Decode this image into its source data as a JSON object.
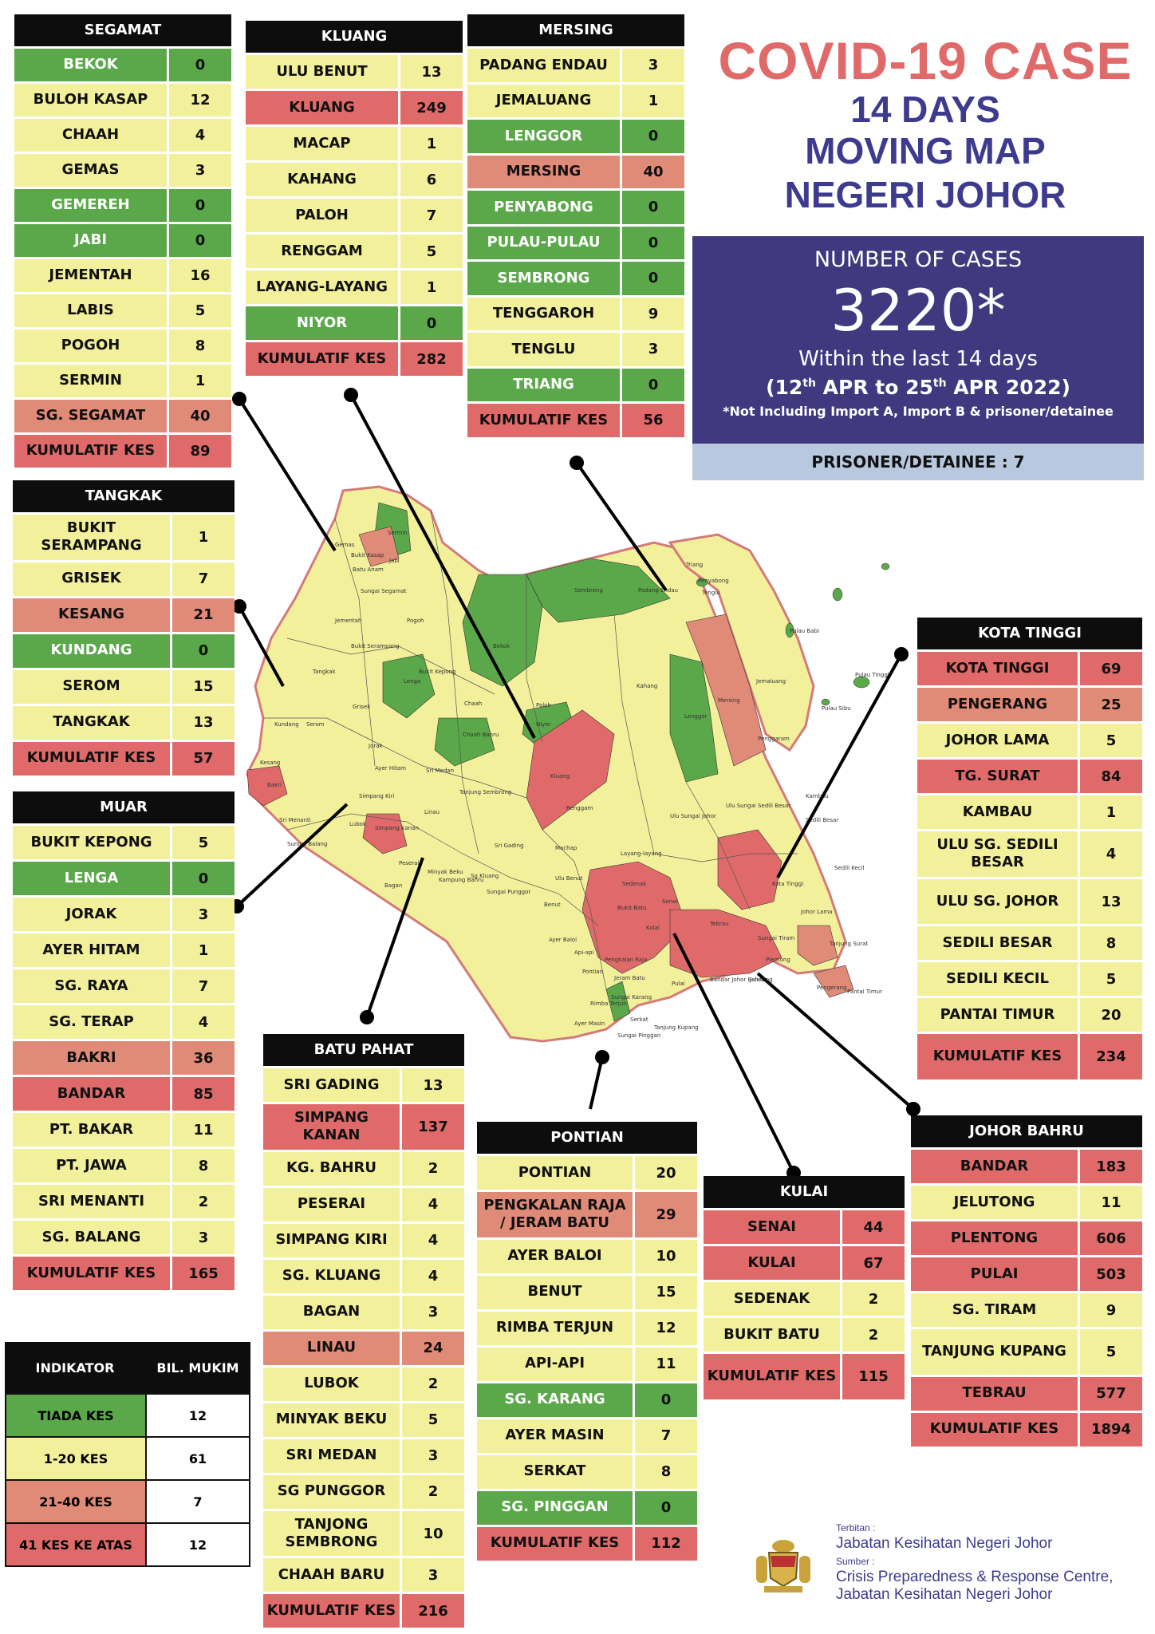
{
  "title": {
    "line1": "COVID-19 CASE",
    "line2": "14 DAYS",
    "line3": "MOVING MAP",
    "line4": "NEGERI JOHOR"
  },
  "summary": {
    "heading": "NUMBER OF CASES",
    "total": "3220*",
    "within": "Within the last 14 days",
    "period_a": "(12",
    "sup1": "th",
    "period_b": " APR to 25",
    "sup2": "th",
    "period_c": " APR 2022)",
    "note": "*Not Including Import A, Import B & prisoner/detainee",
    "prisoner": "PRISONER/DETAINEE : 7"
  },
  "colors": {
    "green": "#5aa84a",
    "yellow": "#f3f09c",
    "orange": "#e08a78",
    "red": "#e06a6a",
    "title_red": "#e06a6a",
    "title_blue": "#3d3b8e",
    "box_blue": "#41397f"
  },
  "districts": {
    "segamat": {
      "name": "SEGAMAT",
      "rows": [
        {
          "n": "BEKOK",
          "v": "0",
          "c": "g"
        },
        {
          "n": "BULOH KASAP",
          "v": "12",
          "c": "y"
        },
        {
          "n": "CHAAH",
          "v": "4",
          "c": "y"
        },
        {
          "n": "GEMAS",
          "v": "3",
          "c": "y"
        },
        {
          "n": "GEMEREH",
          "v": "0",
          "c": "g"
        },
        {
          "n": "JABI",
          "v": "0",
          "c": "g"
        },
        {
          "n": "JEMENTAH",
          "v": "16",
          "c": "y"
        },
        {
          "n": "LABIS",
          "v": "5",
          "c": "y"
        },
        {
          "n": "POGOH",
          "v": "8",
          "c": "y"
        },
        {
          "n": "SERMIN",
          "v": "1",
          "c": "y"
        },
        {
          "n": "SG. SEGAMAT",
          "v": "40",
          "c": "o"
        },
        {
          "n": "KUMULATIF KES",
          "v": "89",
          "c": "r"
        }
      ]
    },
    "kluang": {
      "name": "KLUANG",
      "rows": [
        {
          "n": "ULU BENUT",
          "v": "13",
          "c": "y"
        },
        {
          "n": "KLUANG",
          "v": "249",
          "c": "r"
        },
        {
          "n": "MACAP",
          "v": "1",
          "c": "y"
        },
        {
          "n": "KAHANG",
          "v": "6",
          "c": "y"
        },
        {
          "n": "PALOH",
          "v": "7",
          "c": "y"
        },
        {
          "n": "RENGGAM",
          "v": "5",
          "c": "y"
        },
        {
          "n": "LAYANG-LAYANG",
          "v": "1",
          "c": "y"
        },
        {
          "n": "NIYOR",
          "v": "0",
          "c": "g"
        },
        {
          "n": "KUMULATIF KES",
          "v": "282",
          "c": "r"
        }
      ]
    },
    "mersing": {
      "name": "MERSING",
      "rows": [
        {
          "n": "PADANG ENDAU",
          "v": "3",
          "c": "y"
        },
        {
          "n": "JEMALUANG",
          "v": "1",
          "c": "y"
        },
        {
          "n": "LENGGOR",
          "v": "0",
          "c": "g"
        },
        {
          "n": "MERSING",
          "v": "40",
          "c": "o"
        },
        {
          "n": "PENYABONG",
          "v": "0",
          "c": "g"
        },
        {
          "n": "PULAU-PULAU",
          "v": "0",
          "c": "g"
        },
        {
          "n": "SEMBRONG",
          "v": "0",
          "c": "g"
        },
        {
          "n": "TENGGAROH",
          "v": "9",
          "c": "y"
        },
        {
          "n": "TENGLU",
          "v": "3",
          "c": "y"
        },
        {
          "n": "TRIANG",
          "v": "0",
          "c": "g"
        },
        {
          "n": "KUMULATIF KES",
          "v": "56",
          "c": "r"
        }
      ]
    },
    "tangkak": {
      "name": "TANGKAK",
      "rows": [
        {
          "n": "BUKIT SERAMPANG",
          "v": "1",
          "c": "y",
          "tall": true
        },
        {
          "n": "GRISEK",
          "v": "7",
          "c": "y"
        },
        {
          "n": "KESANG",
          "v": "21",
          "c": "o"
        },
        {
          "n": "KUNDANG",
          "v": "0",
          "c": "g"
        },
        {
          "n": "SEROM",
          "v": "15",
          "c": "y"
        },
        {
          "n": "TANGKAK",
          "v": "13",
          "c": "y"
        },
        {
          "n": "KUMULATIF KES",
          "v": "57",
          "c": "r"
        }
      ]
    },
    "muar": {
      "name": "MUAR",
      "rows": [
        {
          "n": "BUKIT KEPONG",
          "v": "5",
          "c": "y"
        },
        {
          "n": "LENGA",
          "v": "0",
          "c": "g"
        },
        {
          "n": "JORAK",
          "v": "3",
          "c": "y"
        },
        {
          "n": "AYER HITAM",
          "v": "1",
          "c": "y"
        },
        {
          "n": "SG. RAYA",
          "v": "7",
          "c": "y"
        },
        {
          "n": "SG. TERAP",
          "v": "4",
          "c": "y"
        },
        {
          "n": "BAKRI",
          "v": "36",
          "c": "o"
        },
        {
          "n": "BANDAR",
          "v": "85",
          "c": "r"
        },
        {
          "n": "PT. BAKAR",
          "v": "11",
          "c": "y"
        },
        {
          "n": "PT. JAWA",
          "v": "8",
          "c": "y"
        },
        {
          "n": "SRI MENANTI",
          "v": "2",
          "c": "y"
        },
        {
          "n": "SG. BALANG",
          "v": "3",
          "c": "y"
        },
        {
          "n": "KUMULATIF KES",
          "v": "165",
          "c": "r"
        }
      ]
    },
    "batu_pahat": {
      "name": "BATU PAHAT",
      "rows": [
        {
          "n": "SRI GADING",
          "v": "13",
          "c": "y"
        },
        {
          "n": "SIMPANG KANAN",
          "v": "137",
          "c": "r",
          "tall": true
        },
        {
          "n": "KG. BAHRU",
          "v": "2",
          "c": "y"
        },
        {
          "n": "PESERAI",
          "v": "4",
          "c": "y"
        },
        {
          "n": "SIMPANG KIRI",
          "v": "4",
          "c": "y"
        },
        {
          "n": "SG. KLUANG",
          "v": "4",
          "c": "y"
        },
        {
          "n": "BAGAN",
          "v": "3",
          "c": "y"
        },
        {
          "n": "LINAU",
          "v": "24",
          "c": "o"
        },
        {
          "n": "LUBOK",
          "v": "2",
          "c": "y"
        },
        {
          "n": "MINYAK BEKU",
          "v": "5",
          "c": "y"
        },
        {
          "n": "SRI MEDAN",
          "v": "3",
          "c": "y"
        },
        {
          "n": "SG PUNGGOR",
          "v": "2",
          "c": "y"
        },
        {
          "n": "TANJONG SEMBRONG",
          "v": "10",
          "c": "y",
          "tall": true
        },
        {
          "n": "CHAAH BARU",
          "v": "3",
          "c": "y"
        },
        {
          "n": "KUMULATIF KES",
          "v": "216",
          "c": "r"
        }
      ]
    },
    "pontian": {
      "name": "PONTIAN",
      "rows": [
        {
          "n": "PONTIAN",
          "v": "20",
          "c": "y"
        },
        {
          "n": "PENGKALAN RAJA / JERAM BATU",
          "v": "29",
          "c": "o",
          "tall": true
        },
        {
          "n": "AYER BALOI",
          "v": "10",
          "c": "y"
        },
        {
          "n": "BENUT",
          "v": "15",
          "c": "y"
        },
        {
          "n": "RIMBA TERJUN",
          "v": "12",
          "c": "y"
        },
        {
          "n": "API-API",
          "v": "11",
          "c": "y"
        },
        {
          "n": "SG. KARANG",
          "v": "0",
          "c": "g"
        },
        {
          "n": "AYER MASIN",
          "v": "7",
          "c": "y"
        },
        {
          "n": "SERKAT",
          "v": "8",
          "c": "y"
        },
        {
          "n": "SG. PINGGAN",
          "v": "0",
          "c": "g"
        },
        {
          "n": "KUMULATIF KES",
          "v": "112",
          "c": "r"
        }
      ]
    },
    "kulai": {
      "name": "KULAI",
      "rows": [
        {
          "n": "SENAI",
          "v": "44",
          "c": "r"
        },
        {
          "n": "KULAI",
          "v": "67",
          "c": "r"
        },
        {
          "n": "SEDENAK",
          "v": "2",
          "c": "y"
        },
        {
          "n": "BUKIT BATU",
          "v": "2",
          "c": "y"
        },
        {
          "n": "KUMULATIF KES",
          "v": "115",
          "c": "r",
          "tall": true
        }
      ]
    },
    "kota_tinggi": {
      "name": "KOTA TINGGI",
      "rows": [
        {
          "n": "KOTA TINGGI",
          "v": "69",
          "c": "r"
        },
        {
          "n": "PENGERANG",
          "v": "25",
          "c": "o"
        },
        {
          "n": "JOHOR LAMA",
          "v": "5",
          "c": "y"
        },
        {
          "n": "TG. SURAT",
          "v": "84",
          "c": "r"
        },
        {
          "n": "KAMBAU",
          "v": "1",
          "c": "y"
        },
        {
          "n": "ULU SG. SEDILI BESAR",
          "v": "4",
          "c": "y",
          "tall": true
        },
        {
          "n": "ULU  SG. JOHOR",
          "v": "13",
          "c": "y",
          "tall": true
        },
        {
          "n": "SEDILI BESAR",
          "v": "8",
          "c": "y"
        },
        {
          "n": "SEDILI KECIL",
          "v": "5",
          "c": "y"
        },
        {
          "n": "PANTAI TIMUR",
          "v": "20",
          "c": "y"
        },
        {
          "n": "KUMULATIF KES",
          "v": "234",
          "c": "r",
          "tall": true
        }
      ]
    },
    "johor_bahru": {
      "name": "JOHOR BAHRU",
      "rows": [
        {
          "n": "BANDAR",
          "v": "183",
          "c": "r"
        },
        {
          "n": "JELUTONG",
          "v": "11",
          "c": "y"
        },
        {
          "n": "PLENTONG",
          "v": "606",
          "c": "r"
        },
        {
          "n": "PULAI",
          "v": "503",
          "c": "r"
        },
        {
          "n": "SG. TIRAM",
          "v": "9",
          "c": "y"
        },
        {
          "n": "TANJUNG KUPANG",
          "v": "5",
          "c": "y",
          "tall": true
        },
        {
          "n": "TEBRAU",
          "v": "577",
          "c": "r"
        },
        {
          "n": "KUMULATIF KES",
          "v": "1894",
          "c": "r"
        }
      ]
    }
  },
  "legend": {
    "h1": "INDIKATOR",
    "h2": "BIL. MUKIM",
    "rows": [
      {
        "n": "TIADA KES",
        "v": "12",
        "c": "g"
      },
      {
        "n": "1-20 KES",
        "v": "61",
        "c": "y"
      },
      {
        "n": "21-40 KES",
        "v": "7",
        "c": "o"
      },
      {
        "n": "41 KES KE ATAS",
        "v": "12",
        "c": "r"
      }
    ]
  },
  "footer": {
    "terbitan_label": "Terbitan :",
    "terbitan": "Jabatan Kesihatan Negeri Johor",
    "sumber_label": "Sumber :",
    "sumber1": "Crisis Preparedness & Response Centre,",
    "sumber2": "Jabatan Kesihatan Negeri Johor"
  },
  "map_labels": [
    "Gemas",
    "Bukit Kasap",
    "Sermin",
    "Jabi",
    "Batu Anam",
    "Sungai Segamat",
    "Jementah",
    "Pogoh",
    "Bukit Serampang",
    "Tangkak",
    "Bukit Kepong",
    "Grisek",
    "Lenga",
    "Bekok",
    "Chaah",
    "Serom",
    "Kundang",
    "Jorak",
    "Kesang",
    "Bakri",
    "Sri Medan",
    "Ayer Hitam",
    "Chaah Bahru",
    "Tanjung Sembrong",
    "Niyor",
    "Paloh",
    "Kluang",
    "Sembrong",
    "Lenggor",
    "Kahang",
    "Mersing",
    "Jemaluang",
    "Renggam",
    "Padang Endau",
    "Triang",
    "Penyabong",
    "Tenglu",
    "Pulau Babi",
    "Pulau Tinggi",
    "Pulau Sibu",
    "Penggaram",
    "Ulu Sungai Johor",
    "Ulu Sungai Sedili Besar",
    "Kambau",
    "Sedili Besar",
    "Sedili Kecil",
    "Kota Tinggi",
    "Johor Lama",
    "Tanjung Surat",
    "Pengerang",
    "Pantai Timur",
    "Sungai Tiram",
    "Plentong",
    "Tebrau",
    "Senai",
    "Kulai",
    "Sedenak",
    "Bukit Batu",
    "Layang-layang",
    "Machap",
    "Ulu Benut",
    "Simpang Kanan",
    "Linau",
    "Minyak Beku",
    "Sri Gading",
    "Benut",
    "Ayer Baloi",
    "Api-api",
    "Pontian",
    "Rimba Terjun",
    "Serkat",
    "Ayer Masin",
    "Pulai",
    "Tanjung Kupang",
    "Bandar Johor Bahru",
    "Jelutong",
    "Sungai Balang",
    "Sri Menanti",
    "Lubok",
    "Simpang Kiri",
    "Peserai",
    "Bagan",
    "Sg Kluang",
    "Kampung Bahru",
    "Sungai Punggor",
    "Sungai Karang",
    "Pengkalan Raja",
    "Jeram Batu",
    "Sungai Pinggan"
  ]
}
